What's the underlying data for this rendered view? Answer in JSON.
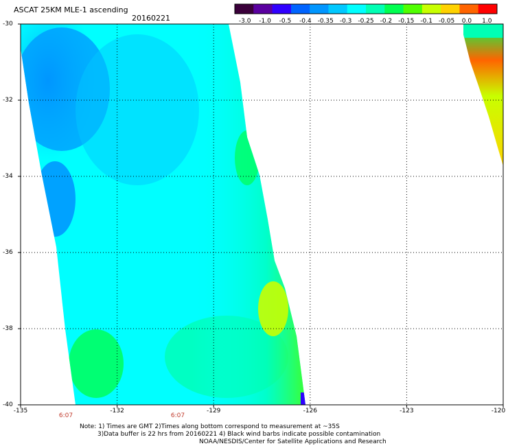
{
  "header": {
    "title": "ASCAT 25KM MLE-1 ascending",
    "date": "20160221"
  },
  "colorbar": {
    "tick_labels": [
      "-3.0",
      "-1.0",
      "-0.5",
      "-0.4",
      "-0.35",
      "-0.3",
      "-0.25",
      "-0.2",
      "-0.15",
      "-0.1",
      "-0.05",
      "0.0",
      "1.0"
    ],
    "colors": [
      "#3a003a",
      "#5a00a0",
      "#3000ff",
      "#0064ff",
      "#0096ff",
      "#00c8ff",
      "#00ffff",
      "#00ffb4",
      "#00ff50",
      "#50ff00",
      "#c8ff00",
      "#ffd200",
      "#ff6400",
      "#ff0000"
    ]
  },
  "map": {
    "latitude_labels": [
      "-30",
      "-32",
      "-34",
      "-36",
      "-38",
      "-40"
    ],
    "longitude_labels": [
      "-135",
      "-132",
      "-129",
      "-126",
      "-123",
      "-120"
    ],
    "time_labels": [
      "6:07",
      "6:07"
    ]
  },
  "footer": {
    "line1": "Note: 1) Times are GMT 2)Times along bottom correspond to measurement at ~35S",
    "line2": "3)Data buffer is 22 hrs from 20160221 4) Black wind barbs indicate possible contamination",
    "line3": "NOAA/NESDIS/Center for Satellite Applications and Research"
  }
}
